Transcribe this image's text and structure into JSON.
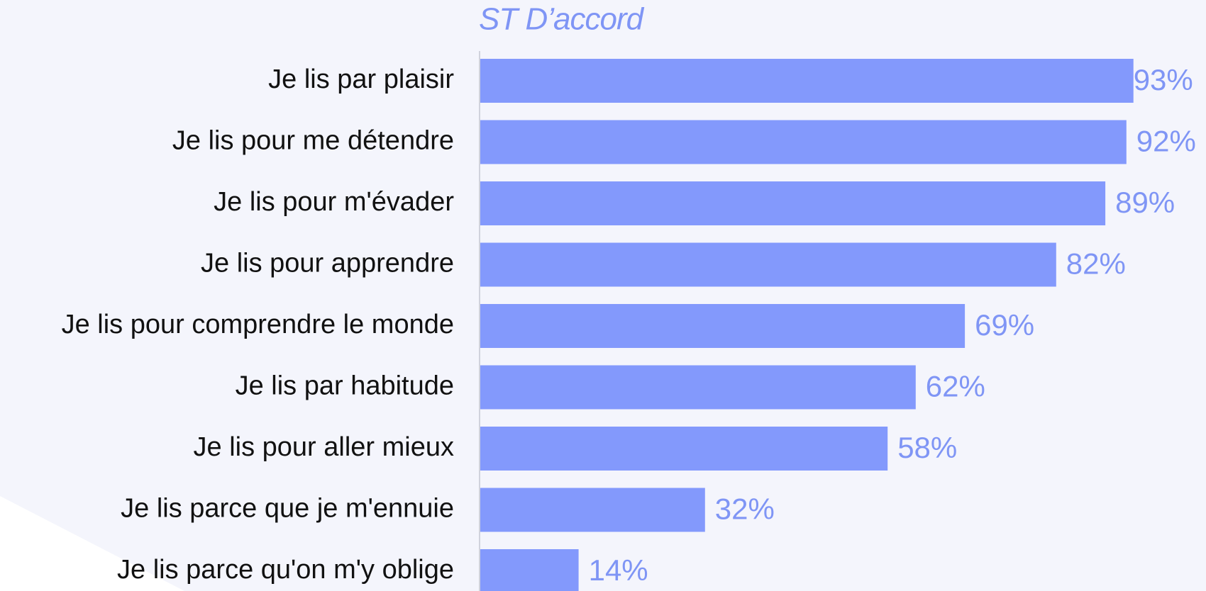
{
  "chart_data": {
    "type": "bar",
    "orientation": "horizontal",
    "title": "ST D’accord",
    "categories": [
      "Je lis par plaisir",
      "Je lis pour me détendre",
      "Je lis pour m'évader",
      "Je lis pour apprendre",
      "Je lis pour comprendre le monde",
      "Je lis par habitude",
      "Je lis pour aller mieux",
      "Je lis parce que je m'ennuie",
      "Je lis parce qu'on m'y oblige"
    ],
    "values": [
      93,
      92,
      89,
      82,
      69,
      62,
      58,
      32,
      14
    ],
    "value_labels": [
      "93%",
      "92%",
      "89%",
      "82%",
      "69%",
      "62%",
      "58%",
      "32%",
      "14%"
    ],
    "color": "#8399fc"
  }
}
